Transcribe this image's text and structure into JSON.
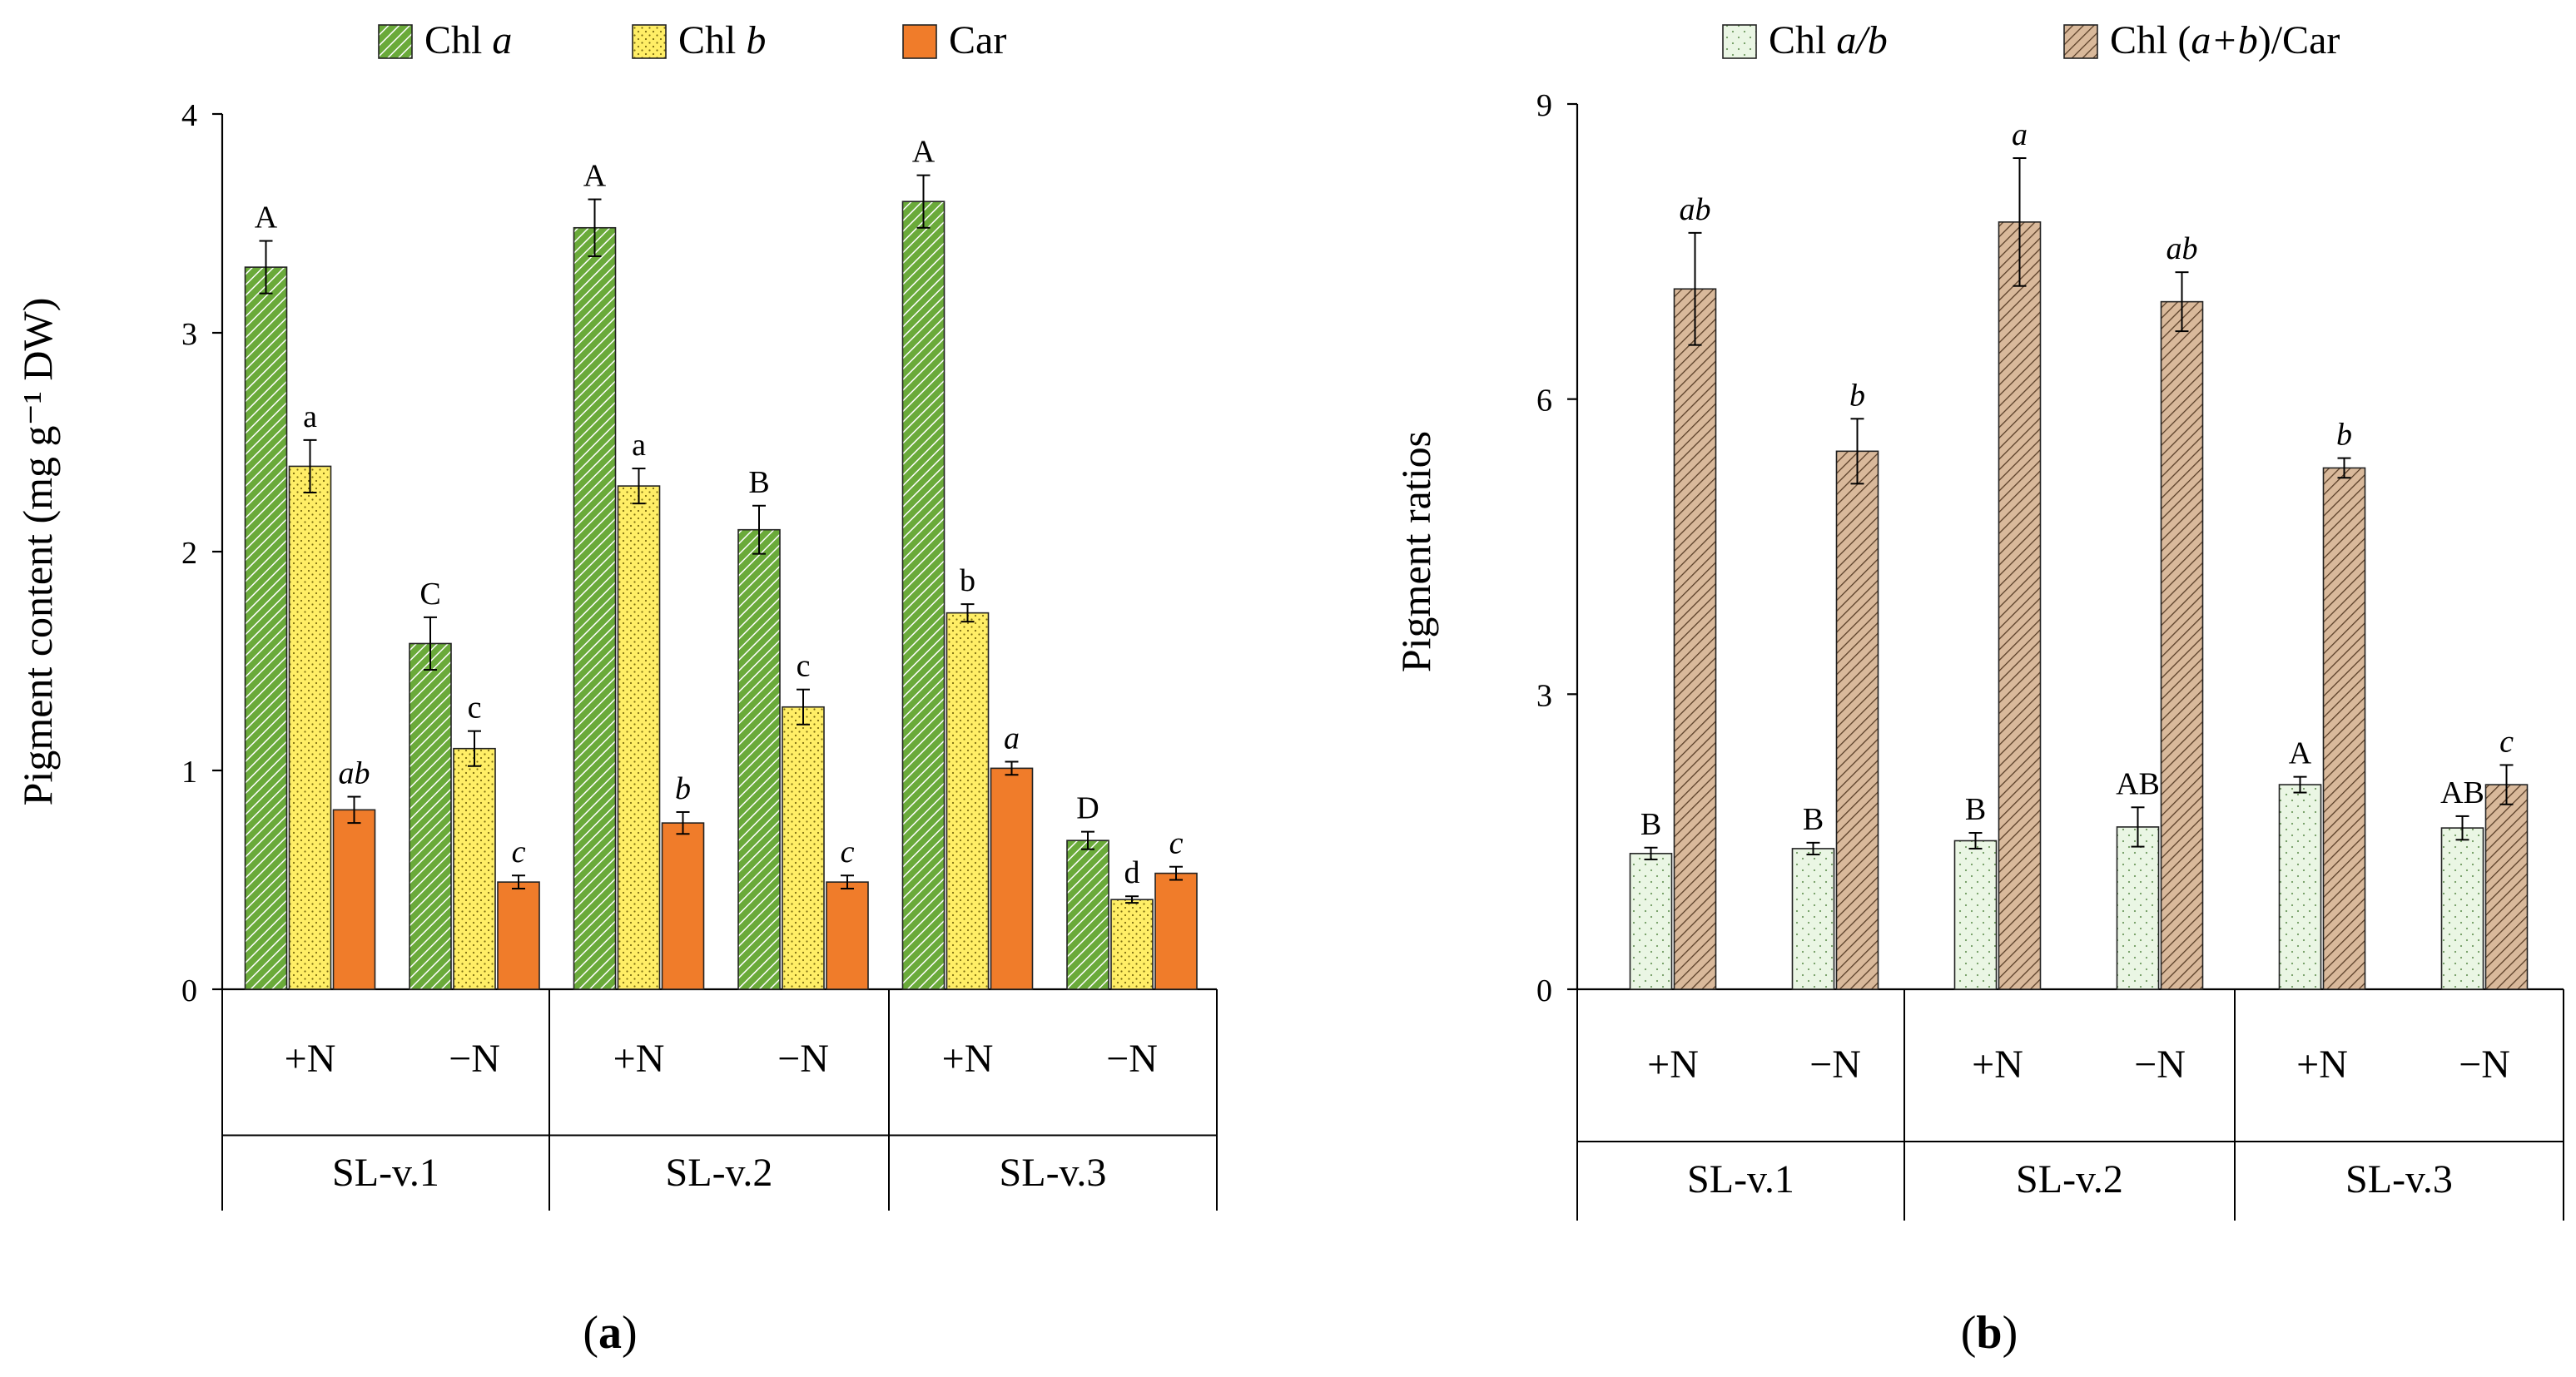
{
  "chart_data": [
    {
      "type": "bar",
      "panel_label": "(a)",
      "panel_letter": "a",
      "ylabel": "Pigment content (mg g⁻¹ DW)",
      "ylim": [
        0,
        4
      ],
      "yticks": [
        "0",
        "1",
        "2",
        "3",
        "4"
      ],
      "treatments": [
        "+N",
        "−N",
        "+N",
        "−N",
        "+N",
        "−N"
      ],
      "groups": [
        "SL-v.1",
        "SL-v.2",
        "SL-v.3"
      ],
      "series": [
        {
          "name": "Chl a",
          "name_main": "Chl ",
          "name_italic": "a",
          "pattern": "diag-green",
          "fill": "#6aaa3a",
          "values": [
            3.3,
            1.58,
            3.48,
            2.1,
            3.6,
            0.68
          ],
          "errors": [
            0.12,
            0.12,
            0.13,
            0.11,
            0.12,
            0.04
          ],
          "letters": [
            "A",
            "C",
            "A",
            "B",
            "A",
            "D"
          ],
          "letters_italic": false
        },
        {
          "name": "Chl b",
          "name_main": "Chl ",
          "name_italic": "b",
          "pattern": "dots-yellow",
          "fill": "#ffee66",
          "values": [
            2.39,
            1.1,
            2.3,
            1.29,
            1.72,
            0.41
          ],
          "errors": [
            0.12,
            0.08,
            0.08,
            0.08,
            0.04,
            0.015
          ],
          "letters": [
            "a",
            "c",
            "a",
            "c",
            "b",
            "d"
          ],
          "letters_italic": false
        },
        {
          "name": "Car",
          "name_main": "Car",
          "name_italic": "",
          "pattern": "solid-orange",
          "fill": "#f07c2a",
          "values": [
            0.82,
            0.49,
            0.76,
            0.49,
            1.01,
            0.53
          ],
          "errors": [
            0.06,
            0.03,
            0.05,
            0.03,
            0.03,
            0.03
          ],
          "letters": [
            "ab",
            "c",
            "b",
            "c",
            "a",
            "c"
          ],
          "letters_italic": true
        }
      ]
    },
    {
      "type": "bar",
      "panel_label": "(b)",
      "panel_letter": "b",
      "ylabel": "Pigment ratios",
      "ylim": [
        0,
        9
      ],
      "yticks": [
        "0",
        "3",
        "6",
        "9"
      ],
      "treatments": [
        "+N",
        "−N",
        "+N",
        "−N",
        "+N",
        "−N"
      ],
      "groups": [
        "SL-v.1",
        "SL-v.2",
        "SL-v.3"
      ],
      "series": [
        {
          "name": "Chl a/b",
          "name_main": "Chl ",
          "name_italic": "a/b",
          "pattern": "dots-mint",
          "fill": "#eaf6e4",
          "values": [
            1.38,
            1.43,
            1.51,
            1.65,
            2.08,
            1.64
          ],
          "errors": [
            0.06,
            0.06,
            0.08,
            0.2,
            0.08,
            0.12
          ],
          "letters": [
            "B",
            "B",
            "B",
            "AB",
            "A",
            "AB"
          ],
          "letters_italic": false
        },
        {
          "name": "Chl (a+b)/Car",
          "name_main": "Chl (",
          "name_italic": "a+b",
          "name_tail": ")/Car",
          "pattern": "diag-brown",
          "fill": "#d9b99b",
          "values": [
            7.12,
            5.47,
            7.8,
            6.99,
            5.3,
            2.08
          ],
          "errors": [
            0.57,
            0.33,
            0.65,
            0.3,
            0.1,
            0.2
          ],
          "letters": [
            "ab",
            "b",
            "a",
            "ab",
            "b",
            "c"
          ],
          "letters_italic": true
        }
      ]
    }
  ]
}
